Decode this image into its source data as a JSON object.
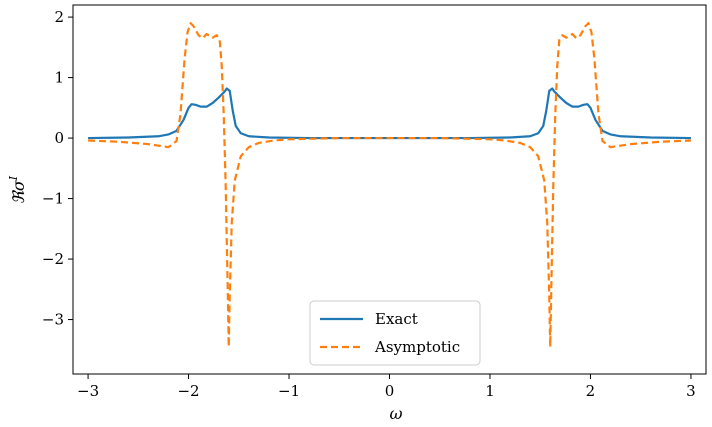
{
  "chart_data": {
    "type": "line",
    "title": "",
    "xlabel": "ω",
    "ylabel": "ℜσ^I",
    "xlim": [
      -3.15,
      3.15
    ],
    "ylim": [
      -3.9,
      2.2
    ],
    "xticks": [
      -3,
      -2,
      -1,
      0,
      1,
      2,
      3
    ],
    "xtick_labels": [
      "−3",
      "−2",
      "−1",
      "0",
      "1",
      "2",
      "3"
    ],
    "yticks": [
      -3,
      -2,
      -1,
      0,
      1,
      2
    ],
    "ytick_labels": [
      "−3",
      "−2",
      "−1",
      "0",
      "1",
      "2"
    ],
    "grid": false,
    "legend_position": "lower center",
    "series": [
      {
        "name": "Exact",
        "color": "#1f77b4",
        "style": "solid",
        "points": [
          [
            -3.0,
            0.0
          ],
          [
            -2.6,
            0.01
          ],
          [
            -2.3,
            0.03
          ],
          [
            -2.2,
            0.06
          ],
          [
            -2.12,
            0.12
          ],
          [
            -2.05,
            0.3
          ],
          [
            -2.0,
            0.5
          ],
          [
            -1.97,
            0.56
          ],
          [
            -1.93,
            0.55
          ],
          [
            -1.88,
            0.52
          ],
          [
            -1.82,
            0.52
          ],
          [
            -1.76,
            0.58
          ],
          [
            -1.7,
            0.67
          ],
          [
            -1.64,
            0.77
          ],
          [
            -1.62,
            0.82
          ],
          [
            -1.59,
            0.78
          ],
          [
            -1.56,
            0.45
          ],
          [
            -1.53,
            0.2
          ],
          [
            -1.48,
            0.08
          ],
          [
            -1.4,
            0.03
          ],
          [
            -1.2,
            0.01
          ],
          [
            -0.8,
            0.0
          ],
          [
            0.0,
            0.0
          ],
          [
            0.8,
            0.0
          ],
          [
            1.2,
            0.01
          ],
          [
            1.4,
            0.03
          ],
          [
            1.48,
            0.08
          ],
          [
            1.53,
            0.2
          ],
          [
            1.56,
            0.45
          ],
          [
            1.59,
            0.78
          ],
          [
            1.62,
            0.82
          ],
          [
            1.64,
            0.77
          ],
          [
            1.7,
            0.67
          ],
          [
            1.76,
            0.58
          ],
          [
            1.82,
            0.52
          ],
          [
            1.88,
            0.52
          ],
          [
            1.93,
            0.55
          ],
          [
            1.97,
            0.56
          ],
          [
            2.0,
            0.5
          ],
          [
            2.05,
            0.3
          ],
          [
            2.12,
            0.12
          ],
          [
            2.2,
            0.06
          ],
          [
            2.3,
            0.03
          ],
          [
            2.6,
            0.01
          ],
          [
            3.0,
            0.0
          ]
        ]
      },
      {
        "name": "Asymptotic",
        "color": "#ff7f0e",
        "style": "dashed",
        "points": [
          [
            -3.0,
            -0.04
          ],
          [
            -2.7,
            -0.06
          ],
          [
            -2.4,
            -0.1
          ],
          [
            -2.2,
            -0.15
          ],
          [
            -2.12,
            -0.05
          ],
          [
            -2.08,
            0.4
          ],
          [
            -2.04,
            1.3
          ],
          [
            -2.01,
            1.75
          ],
          [
            -1.98,
            1.9
          ],
          [
            -1.95,
            1.85
          ],
          [
            -1.9,
            1.7
          ],
          [
            -1.86,
            1.65
          ],
          [
            -1.82,
            1.72
          ],
          [
            -1.76,
            1.66
          ],
          [
            -1.72,
            1.7
          ],
          [
            -1.69,
            1.62
          ],
          [
            -1.67,
            1.2
          ],
          [
            -1.65,
            0.4
          ],
          [
            -1.63,
            -0.8
          ],
          [
            -1.61,
            -2.5
          ],
          [
            -1.6,
            -3.45
          ],
          [
            -1.59,
            -2.6
          ],
          [
            -1.57,
            -1.4
          ],
          [
            -1.54,
            -0.7
          ],
          [
            -1.48,
            -0.3
          ],
          [
            -1.4,
            -0.15
          ],
          [
            -1.3,
            -0.08
          ],
          [
            -1.15,
            -0.04
          ],
          [
            -1.0,
            -0.02
          ],
          [
            -0.5,
            0.0
          ],
          [
            0.0,
            0.0
          ],
          [
            0.5,
            0.0
          ],
          [
            1.0,
            -0.02
          ],
          [
            1.15,
            -0.04
          ],
          [
            1.3,
            -0.08
          ],
          [
            1.4,
            -0.15
          ],
          [
            1.48,
            -0.3
          ],
          [
            1.54,
            -0.7
          ],
          [
            1.57,
            -1.4
          ],
          [
            1.59,
            -2.6
          ],
          [
            1.6,
            -3.45
          ],
          [
            1.61,
            -2.5
          ],
          [
            1.63,
            -0.8
          ],
          [
            1.65,
            0.4
          ],
          [
            1.67,
            1.2
          ],
          [
            1.69,
            1.62
          ],
          [
            1.72,
            1.7
          ],
          [
            1.76,
            1.66
          ],
          [
            1.82,
            1.72
          ],
          [
            1.86,
            1.65
          ],
          [
            1.9,
            1.7
          ],
          [
            1.95,
            1.85
          ],
          [
            1.98,
            1.9
          ],
          [
            2.01,
            1.75
          ],
          [
            2.04,
            1.3
          ],
          [
            2.08,
            0.4
          ],
          [
            2.12,
            -0.05
          ],
          [
            2.2,
            -0.15
          ],
          [
            2.4,
            -0.1
          ],
          [
            2.7,
            -0.06
          ],
          [
            3.0,
            -0.04
          ]
        ]
      }
    ]
  }
}
